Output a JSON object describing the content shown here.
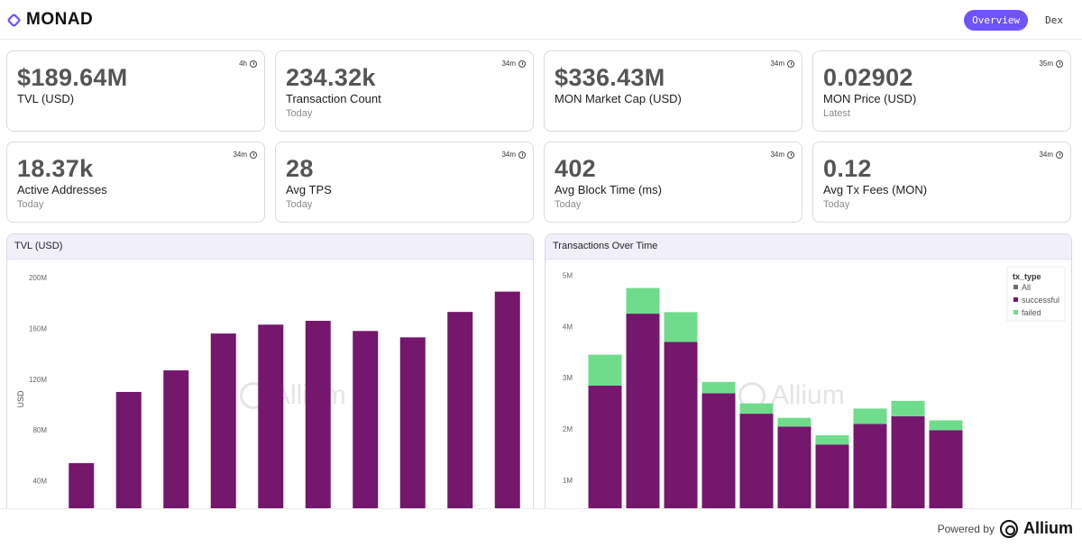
{
  "header": {
    "logo_text": "MONAD",
    "tabs": [
      {
        "label": "Overview",
        "active": true
      },
      {
        "label": "Dex",
        "active": false
      }
    ]
  },
  "cards": [
    {
      "value": "$189.64M",
      "label": "TVL (USD)",
      "sub": "",
      "badge": "4h"
    },
    {
      "value": "234.32k",
      "label": "Transaction Count",
      "sub": "Today",
      "badge": "34m"
    },
    {
      "value": "$336.43M",
      "label": "MON Market Cap (USD)",
      "sub": "",
      "badge": "34m"
    },
    {
      "value": "0.02902",
      "label": "MON Price (USD)",
      "sub": "Latest",
      "badge": "35m"
    },
    {
      "value": "18.37k",
      "label": "Active Addresses",
      "sub": "Today",
      "badge": "34m"
    },
    {
      "value": "28",
      "label": "Avg TPS",
      "sub": "Today",
      "badge": "34m"
    },
    {
      "value": "402",
      "label": "Avg Block Time (ms)",
      "sub": "Today",
      "badge": "34m"
    },
    {
      "value": "0.12",
      "label": "Avg Tx Fees (MON)",
      "sub": "Today",
      "badge": "34m"
    }
  ],
  "panels": {
    "tvl_title": "TVL (USD)",
    "tx_title": "Transactions Over Time",
    "watermark": "Allium"
  },
  "colors": {
    "accent": "#6e54ff",
    "bar_purple": "#74176d",
    "bar_green": "#6fdc8c",
    "all_gray": "#6b6b6b"
  },
  "chart_data": [
    {
      "type": "bar",
      "title": "TVL (USD)",
      "ylabel": "USD",
      "ylim": [
        0,
        210000000
      ],
      "yticks": [
        "40M",
        "80M",
        "120M",
        "160M",
        "200M"
      ],
      "ytick_values": [
        40000000,
        80000000,
        120000000,
        160000000,
        200000000
      ],
      "values": [
        54000000,
        110000000,
        127000000,
        156000000,
        163000000,
        166000000,
        158000000,
        153000000,
        173000000,
        189000000
      ],
      "grid": false
    },
    {
      "type": "bar",
      "stacked": true,
      "title": "Transactions Over Time",
      "ylim": [
        0,
        5200000
      ],
      "yticks": [
        "1M",
        "2M",
        "3M",
        "4M",
        "5M"
      ],
      "ytick_values": [
        1000000,
        2000000,
        3000000,
        4000000,
        5000000
      ],
      "legend_title": "tx_type",
      "legend_position": "top-right",
      "series": [
        {
          "name": "All",
          "values": []
        },
        {
          "name": "successful",
          "values": [
            2850000,
            4250000,
            3700000,
            2700000,
            2300000,
            2050000,
            1700000,
            2100000,
            2250000,
            1980000
          ]
        },
        {
          "name": "failed",
          "values": [
            600000,
            500000,
            580000,
            220000,
            200000,
            170000,
            180000,
            300000,
            300000,
            190000
          ]
        }
      ]
    }
  ]
}
